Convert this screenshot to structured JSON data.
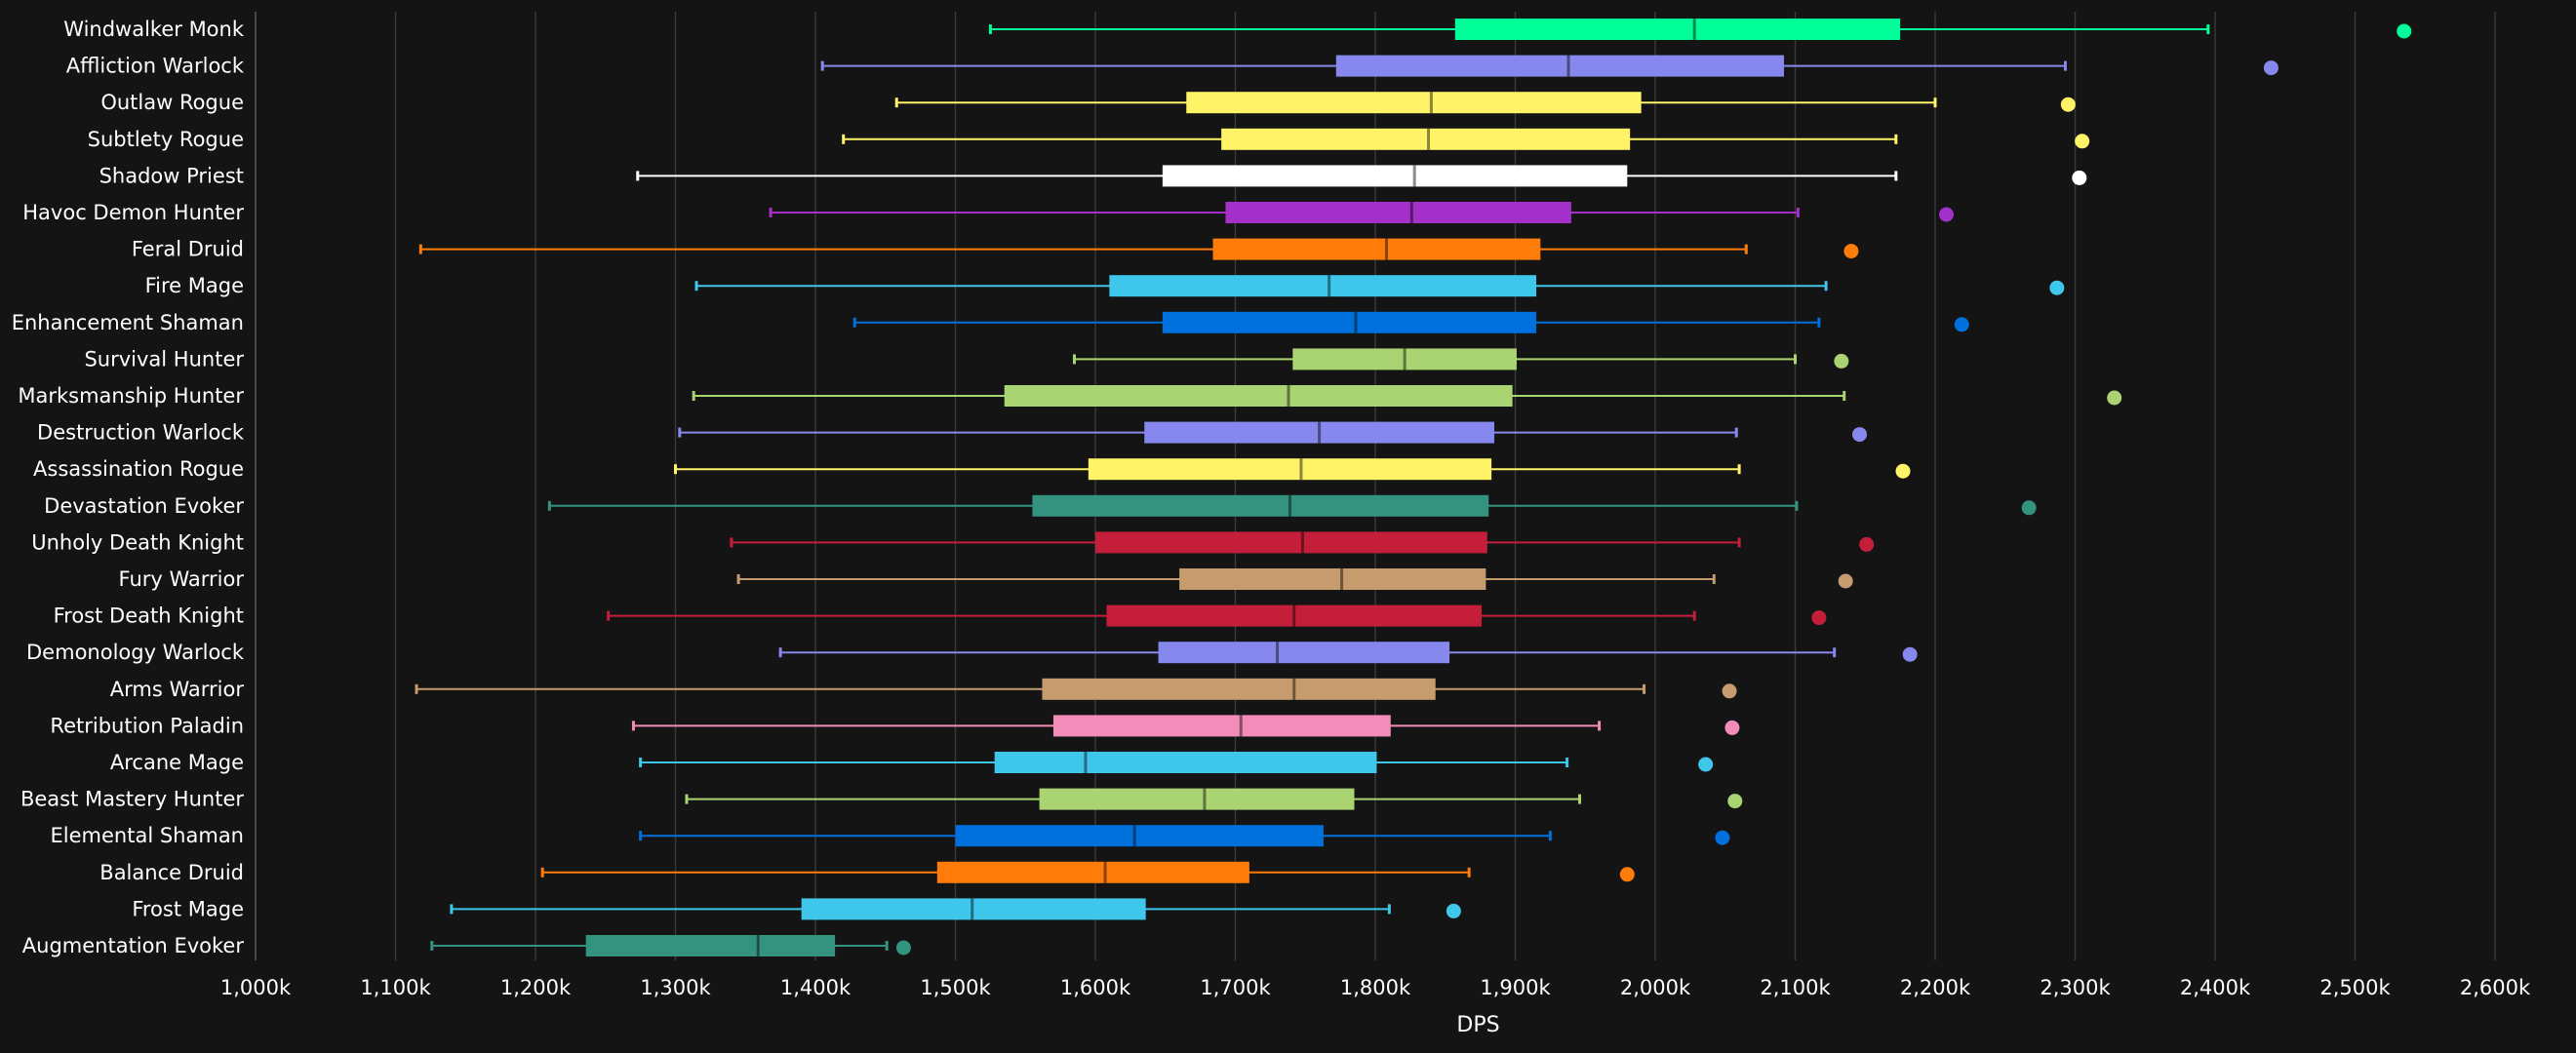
{
  "chart_data": {
    "type": "boxplot",
    "orientation": "horizontal",
    "xlabel": "DPS",
    "ylabel": "",
    "xlim": [
      1000000,
      2600000
    ],
    "xticks": [
      1000000,
      1100000,
      1200000,
      1300000,
      1400000,
      1500000,
      1600000,
      1700000,
      1800000,
      1900000,
      2000000,
      2100000,
      2200000,
      2300000,
      2400000,
      2500000,
      2600000
    ],
    "xtick_labels": [
      "1,000k",
      "1,100k",
      "1,200k",
      "1,300k",
      "1,400k",
      "1,500k",
      "1,600k",
      "1,700k",
      "1,800k",
      "1,900k",
      "2,000k",
      "2,100k",
      "2,200k",
      "2,300k",
      "2,400k",
      "2,500k",
      "2,600k"
    ],
    "grid": "vertical",
    "legend": "none",
    "background": "#141414",
    "series": [
      {
        "name": "Windwalker Monk",
        "color": "#00ff98",
        "min": 1525000,
        "q1": 1857000,
        "median": 2028000,
        "q3": 2175000,
        "max": 2395000,
        "outlier": 2535000
      },
      {
        "name": "Affliction Warlock",
        "color": "#8788ee",
        "min": 1405000,
        "q1": 1772000,
        "median": 1938000,
        "q3": 2092000,
        "max": 2293000,
        "outlier": 2440000
      },
      {
        "name": "Outlaw Rogue",
        "color": "#fff468",
        "min": 1458000,
        "q1": 1665000,
        "median": 1840000,
        "q3": 1990000,
        "max": 2200000,
        "outlier": 2295000
      },
      {
        "name": "Subtlety Rogue",
        "color": "#fff468",
        "min": 1420000,
        "q1": 1690000,
        "median": 1838000,
        "q3": 1982000,
        "max": 2172000,
        "outlier": 2305000
      },
      {
        "name": "Shadow Priest",
        "color": "#ffffff",
        "min": 1273000,
        "q1": 1648000,
        "median": 1828000,
        "q3": 1980000,
        "max": 2172000,
        "outlier": 2303000
      },
      {
        "name": "Havoc Demon Hunter",
        "color": "#a330c9",
        "min": 1368000,
        "q1": 1693000,
        "median": 1826000,
        "q3": 1940000,
        "max": 2102000,
        "outlier": 2208000
      },
      {
        "name": "Feral Druid",
        "color": "#ff7c0a",
        "min": 1118000,
        "q1": 1684000,
        "median": 1808000,
        "q3": 1918000,
        "max": 2065000,
        "outlier": 2140000
      },
      {
        "name": "Fire Mage",
        "color": "#3fc7eb",
        "min": 1315000,
        "q1": 1610000,
        "median": 1767000,
        "q3": 1915000,
        "max": 2122000,
        "outlier": 2287000
      },
      {
        "name": "Enhancement Shaman",
        "color": "#0070dd",
        "min": 1428000,
        "q1": 1648000,
        "median": 1786000,
        "q3": 1915000,
        "max": 2117000,
        "outlier": 2219000
      },
      {
        "name": "Survival Hunter",
        "color": "#aad372",
        "min": 1585000,
        "q1": 1741000,
        "median": 1821000,
        "q3": 1901000,
        "max": 2100000,
        "outlier": 2133000
      },
      {
        "name": "Marksmanship Hunter",
        "color": "#aad372",
        "min": 1313000,
        "q1": 1535000,
        "median": 1738000,
        "q3": 1898000,
        "max": 2135000,
        "outlier": 2328000
      },
      {
        "name": "Destruction Warlock",
        "color": "#8788ee",
        "min": 1303000,
        "q1": 1635000,
        "median": 1760000,
        "q3": 1885000,
        "max": 2058000,
        "outlier": 2146000
      },
      {
        "name": "Assassination Rogue",
        "color": "#fff468",
        "min": 1300000,
        "q1": 1595000,
        "median": 1747000,
        "q3": 1883000,
        "max": 2060000,
        "outlier": 2177000
      },
      {
        "name": "Devastation Evoker",
        "color": "#33937f",
        "min": 1210000,
        "q1": 1555000,
        "median": 1739000,
        "q3": 1881000,
        "max": 2101000,
        "outlier": 2267000
      },
      {
        "name": "Unholy Death Knight",
        "color": "#c41e3a",
        "min": 1340000,
        "q1": 1600000,
        "median": 1748000,
        "q3": 1880000,
        "max": 2060000,
        "outlier": 2151000
      },
      {
        "name": "Fury Warrior",
        "color": "#c69b6d",
        "min": 1345000,
        "q1": 1660000,
        "median": 1776000,
        "q3": 1879000,
        "max": 2042000,
        "outlier": 2136000
      },
      {
        "name": "Frost Death Knight",
        "color": "#c41e3a",
        "min": 1252000,
        "q1": 1608000,
        "median": 1742000,
        "q3": 1876000,
        "max": 2028000,
        "outlier": 2117000
      },
      {
        "name": "Demonology Warlock",
        "color": "#8788ee",
        "min": 1375000,
        "q1": 1645000,
        "median": 1730000,
        "q3": 1853000,
        "max": 2128000,
        "outlier": 2182000
      },
      {
        "name": "Arms Warrior",
        "color": "#c69b6d",
        "min": 1115000,
        "q1": 1562000,
        "median": 1742000,
        "q3": 1843000,
        "max": 1992000,
        "outlier": 2053000
      },
      {
        "name": "Retribution Paladin",
        "color": "#f48cba",
        "min": 1270000,
        "q1": 1570000,
        "median": 1704000,
        "q3": 1811000,
        "max": 1960000,
        "outlier": 2055000
      },
      {
        "name": "Arcane Mage",
        "color": "#3fc7eb",
        "min": 1275000,
        "q1": 1528000,
        "median": 1593000,
        "q3": 1801000,
        "max": 1937000,
        "outlier": 2036000
      },
      {
        "name": "Beast Mastery Hunter",
        "color": "#aad372",
        "min": 1308000,
        "q1": 1560000,
        "median": 1678000,
        "q3": 1785000,
        "max": 1946000,
        "outlier": 2057000
      },
      {
        "name": "Elemental Shaman",
        "color": "#0070dd",
        "min": 1275000,
        "q1": 1500000,
        "median": 1628000,
        "q3": 1763000,
        "max": 1925000,
        "outlier": 2048000
      },
      {
        "name": "Balance Druid",
        "color": "#ff7c0a",
        "min": 1205000,
        "q1": 1487000,
        "median": 1607000,
        "q3": 1710000,
        "max": 1867000,
        "outlier": 1980000
      },
      {
        "name": "Frost Mage",
        "color": "#3fc7eb",
        "min": 1140000,
        "q1": 1390000,
        "median": 1512000,
        "q3": 1636000,
        "max": 1810000,
        "outlier": 1856000
      },
      {
        "name": "Augmentation Evoker",
        "color": "#33937f",
        "min": 1126000,
        "q1": 1236000,
        "median": 1359000,
        "q3": 1414000,
        "max": 1451000,
        "outlier": 1463000
      }
    ]
  }
}
